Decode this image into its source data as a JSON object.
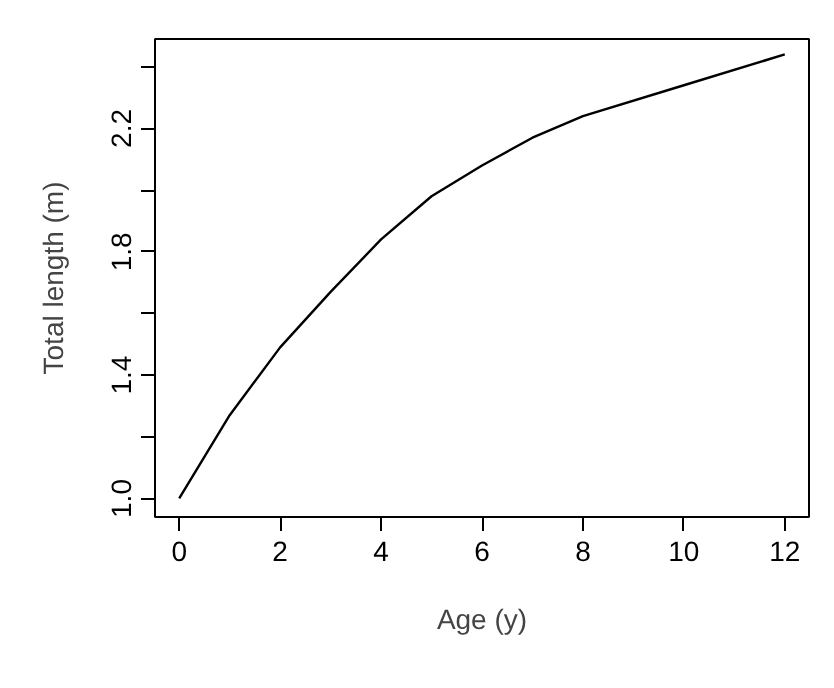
{
  "chart_data": {
    "type": "line",
    "xlabel": "Age (y)",
    "ylabel": "Total length (m)",
    "x": [
      0,
      1,
      2,
      3,
      4,
      5,
      6,
      7,
      8,
      10,
      12
    ],
    "series": [
      {
        "color": "#000000",
        "values": [
          1.0,
          1.27,
          1.49,
          1.67,
          1.84,
          1.98,
          2.08,
          2.17,
          2.24,
          2.34,
          2.44
        ]
      }
    ],
    "xlim": [
      -0.48,
      12.48
    ],
    "ylim": [
      0.94,
      2.49
    ],
    "xticks": [
      0,
      2,
      4,
      6,
      8,
      10,
      12
    ],
    "yticks": [
      {
        "value": 1.0,
        "label": "1.0"
      },
      {
        "value": 1.2,
        "label": null
      },
      1.4,
      {
        "value": 1.6,
        "label": null
      },
      1.8,
      {
        "value": 2.0,
        "label": null
      },
      2.2,
      {
        "value": 2.4,
        "label": null
      }
    ],
    "marker": "none",
    "line_style": "solid"
  }
}
